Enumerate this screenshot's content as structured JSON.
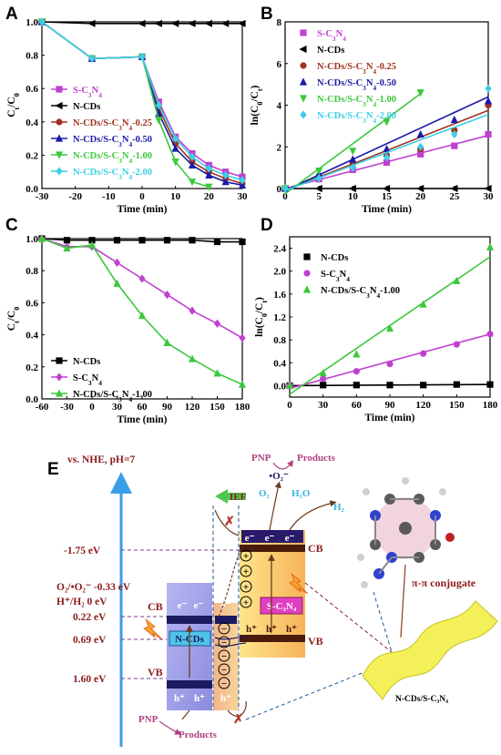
{
  "panels": {
    "A": {
      "label": "A"
    },
    "B": {
      "label": "B"
    },
    "C": {
      "label": "C"
    },
    "D": {
      "label": "D"
    },
    "E": {
      "label": "E"
    }
  },
  "colors": {
    "N-CDs": "#000000",
    "S-C3N4": "#c040d0",
    "N-CDs/S-C3N4-0.25": "#a0321e",
    "N-CDs/S-C3N4-0.50": "#1a1aa8",
    "N-CDs/S-C3N4-1.00": "#3cc83c",
    "N-CDs/S-C3N4-2.00": "#3ccfe6",
    "axis_arrow": "#3a9ee8",
    "energy_label": "#8b1a1a",
    "pnp_label": "#b04080",
    "h2_label": "#3cb4dc"
  },
  "chart_data": [
    {
      "panel": "A",
      "type": "line",
      "xlabel": "Time (min)",
      "ylabel": "Cₜ/C₀",
      "xlim": [
        -30,
        30
      ],
      "ylim": [
        0,
        1.0
      ],
      "xticks": [
        "-30",
        "-20",
        "-10",
        "0",
        "10",
        "20",
        "30"
      ],
      "yticks": [
        "0.0",
        "0.2",
        "0.4",
        "0.6",
        "0.8",
        "1.0"
      ],
      "legend_position": "bottom-left",
      "series": [
        {
          "name": "S-C₃N₄",
          "color": "#c040d0",
          "marker": "square",
          "x": [
            -30,
            -15,
            0,
            5,
            10,
            15,
            20,
            25,
            30
          ],
          "y": [
            1.0,
            0.78,
            0.79,
            0.52,
            0.31,
            0.21,
            0.14,
            0.1,
            0.07
          ]
        },
        {
          "name": "N-CDs",
          "color": "#000000",
          "marker": "triangle-left",
          "x": [
            -30,
            -15,
            0,
            5,
            10,
            15,
            20,
            25,
            30
          ],
          "y": [
            1.0,
            0.99,
            0.99,
            0.99,
            0.99,
            0.99,
            0.99,
            0.99,
            0.99
          ]
        },
        {
          "name": "N-CDs/S-C₃N₄-0.25",
          "color": "#a0321e",
          "marker": "circle",
          "x": [
            -30,
            -15,
            0,
            5,
            10,
            15,
            20,
            25,
            30
          ],
          "y": [
            1.0,
            0.78,
            0.79,
            0.48,
            0.27,
            0.16,
            0.1,
            0.06,
            0.03
          ]
        },
        {
          "name": "N-CDs/S-C₃N₄-0.50",
          "color": "#1a1aa8",
          "marker": "triangle-up",
          "x": [
            -30,
            -15,
            0,
            5,
            10,
            15,
            20,
            25,
            30
          ],
          "y": [
            1.0,
            0.78,
            0.79,
            0.45,
            0.24,
            0.14,
            0.08,
            0.04,
            0.02
          ]
        },
        {
          "name": "N-CDs/S-C₃N₄-1.00",
          "color": "#3cc83c",
          "marker": "triangle-down",
          "x": [
            -30,
            -15,
            0,
            5,
            10,
            15,
            20
          ],
          "y": [
            1.0,
            0.78,
            0.79,
            0.41,
            0.16,
            0.04,
            0.01
          ]
        },
        {
          "name": "N-CDs/S-C₃N₄-2.00",
          "color": "#3ccfe6",
          "marker": "diamond",
          "x": [
            -30,
            -15,
            0,
            5,
            10,
            15,
            20,
            25,
            30
          ],
          "y": [
            1.0,
            0.78,
            0.79,
            0.5,
            0.3,
            0.19,
            0.12,
            0.08,
            0.05
          ]
        }
      ]
    },
    {
      "panel": "B",
      "type": "scatter",
      "xlabel": "Time (min)",
      "ylabel": "ln(C₀/Cₜ)",
      "xlim": [
        0,
        30
      ],
      "ylim": [
        0,
        8
      ],
      "xticks": [
        "0",
        "5",
        "10",
        "15",
        "20",
        "25",
        "30"
      ],
      "yticks": [
        "0",
        "2",
        "4",
        "6",
        "8"
      ],
      "legend_position": "top-left",
      "series": [
        {
          "name": "S-C₃N₄",
          "color": "#c040d0",
          "marker": "square",
          "x": [
            0,
            5,
            10,
            15,
            20,
            25,
            30
          ],
          "y": [
            0,
            0.45,
            0.9,
            1.25,
            1.65,
            2.05,
            2.6
          ],
          "fit": [
            0,
            2.55
          ]
        },
        {
          "name": "N-CDs",
          "color": "#000000",
          "marker": "triangle-left",
          "x": [
            0,
            5,
            10,
            15,
            20,
            25,
            30
          ],
          "y": [
            0,
            0,
            0,
            0,
            0,
            0,
            0
          ],
          "fit": [
            0,
            0
          ]
        },
        {
          "name": "N-CDs/S-C₃N₄-0.25",
          "color": "#a0321e",
          "marker": "circle",
          "x": [
            0,
            5,
            10,
            15,
            20,
            25,
            30
          ],
          "y": [
            0,
            0.6,
            1.2,
            1.6,
            1.9,
            2.8,
            4.0
          ],
          "fit": [
            -0.1,
            3.75
          ]
        },
        {
          "name": "N-CDs/S-C₃N₄-0.50",
          "color": "#1a1aa8",
          "marker": "triangle-up",
          "x": [
            0,
            5,
            10,
            15,
            20,
            25,
            30
          ],
          "y": [
            0,
            0.7,
            1.4,
            1.9,
            2.6,
            3.3,
            4.2
          ],
          "fit": [
            -0.1,
            4.4
          ]
        },
        {
          "name": "N-CDs/S-C₃N₄-1.00",
          "color": "#3cc83c",
          "marker": "triangle-down",
          "x": [
            0,
            5,
            10,
            15,
            20
          ],
          "y": [
            0,
            0.85,
            1.8,
            3.2,
            4.6
          ],
          "fit": [
            -0.25,
            4.55
          ]
        },
        {
          "name": "N-CDs/S-C₃N₄-2.00",
          "color": "#3ccfe6",
          "marker": "diamond",
          "x": [
            0,
            5,
            10,
            15,
            20,
            25,
            30
          ],
          "y": [
            0,
            0.5,
            1.0,
            1.5,
            2.0,
            2.6,
            4.8
          ],
          "fit": [
            -0.1,
            3.55
          ]
        }
      ]
    },
    {
      "panel": "C",
      "type": "line",
      "xlabel": "Time (min)",
      "ylabel": "Cₜ/C₀",
      "xlim": [
        -60,
        180
      ],
      "ylim": [
        0,
        1.0
      ],
      "xticks": [
        "-60",
        "-30",
        "0",
        "30",
        "60",
        "90",
        "120",
        "150",
        "180"
      ],
      "yticks": [
        "0.0",
        "0.2",
        "0.4",
        "0.6",
        "0.8",
        "1.0"
      ],
      "legend_position": "bottom-left",
      "series": [
        {
          "name": "N-CDs",
          "color": "#000000",
          "marker": "square",
          "x": [
            -60,
            -30,
            0,
            30,
            60,
            90,
            120,
            150,
            180
          ],
          "y": [
            1.0,
            0.99,
            0.99,
            0.99,
            0.99,
            0.99,
            0.99,
            0.98,
            0.98
          ]
        },
        {
          "name": "S-C₃N₄",
          "color": "#c040d0",
          "marker": "diamond",
          "x": [
            -60,
            -30,
            0,
            30,
            60,
            90,
            120,
            150,
            180
          ],
          "y": [
            1.0,
            0.95,
            0.95,
            0.85,
            0.75,
            0.65,
            0.55,
            0.47,
            0.38
          ]
        },
        {
          "name": "N-CDs/S-C₃N₄-1.00",
          "color": "#3cc83c",
          "marker": "triangle-up",
          "x": [
            -60,
            -30,
            0,
            30,
            60,
            90,
            120,
            150,
            180
          ],
          "y": [
            1.0,
            0.94,
            0.96,
            0.72,
            0.52,
            0.35,
            0.25,
            0.16,
            0.09
          ]
        }
      ]
    },
    {
      "panel": "D",
      "type": "scatter",
      "xlabel": "Time (min)",
      "ylabel": "ln(C₀/Cₜ)",
      "xlim": [
        0,
        180
      ],
      "ylim": [
        -0.2,
        2.6
      ],
      "xticks": [
        "0",
        "30",
        "60",
        "90",
        "120",
        "150",
        "180"
      ],
      "yticks": [
        "0.0",
        "0.4",
        "0.8",
        "1.2",
        "1.6",
        "2.0",
        "2.4"
      ],
      "legend_position": "top-left",
      "series": [
        {
          "name": "N-CDs",
          "color": "#000000",
          "marker": "square",
          "x": [
            0,
            30,
            60,
            90,
            120,
            150,
            180
          ],
          "y": [
            0,
            0.01,
            0.01,
            0.01,
            0.01,
            0.02,
            0.02
          ],
          "fit": [
            0.0,
            0.02
          ]
        },
        {
          "name": "S-C₃N₄",
          "color": "#c040d0",
          "marker": "circle",
          "x": [
            0,
            30,
            60,
            90,
            120,
            150,
            180
          ],
          "y": [
            0,
            0.12,
            0.25,
            0.38,
            0.56,
            0.72,
            0.9
          ],
          "fit": [
            -0.05,
            0.9
          ]
        },
        {
          "name": "N-CDs/S-C₃N₄-1.00",
          "color": "#3cc83c",
          "marker": "triangle-up",
          "x": [
            0,
            30,
            60,
            90,
            120,
            150,
            180
          ],
          "y": [
            0,
            0.22,
            0.55,
            1.0,
            1.42,
            1.83,
            2.42
          ],
          "fit": [
            -0.15,
            2.25
          ]
        }
      ]
    }
  ],
  "diagram": {
    "axis_label": "vs. NHE, pH=7",
    "energy_labels": [
      "-1.75 eV",
      "O₂/•O₂⁻ -0.33 eV",
      "H⁺/H₂    0 eV",
      "0.22 eV",
      "0.69 eV",
      "1.60 eV"
    ],
    "ncds": {
      "cb": "CB",
      "vb": "VB",
      "name": "N-CDs"
    },
    "sc3n4": {
      "cb": "CB",
      "vb": "VB",
      "name": "S-C₃N₄"
    },
    "electron": "e⁻",
    "hole": "h⁺",
    "plus": "+",
    "minus": "−",
    "ief": "IEF",
    "o2": "O₂",
    "o2_radical": "•O₂⁻",
    "h2o": "H₂O",
    "h2": "H₂",
    "pnp": "PNP",
    "products": "Products",
    "pi_label": "π-π  conjugate",
    "composite_label": "N-CDs/S-C₃N₄"
  }
}
